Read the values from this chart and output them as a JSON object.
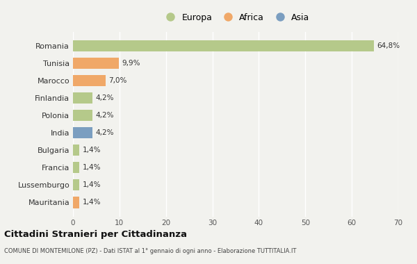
{
  "categories": [
    "Romania",
    "Tunisia",
    "Marocco",
    "Finlandia",
    "Polonia",
    "India",
    "Bulgaria",
    "Francia",
    "Lussemburgo",
    "Mauritania"
  ],
  "values": [
    64.8,
    9.9,
    7.0,
    4.2,
    4.2,
    4.2,
    1.4,
    1.4,
    1.4,
    1.4
  ],
  "labels": [
    "64,8%",
    "9,9%",
    "7,0%",
    "4,2%",
    "4,2%",
    "4,2%",
    "1,4%",
    "1,4%",
    "1,4%",
    "1,4%"
  ],
  "colors": [
    "#b5c98a",
    "#f0a868",
    "#f0a868",
    "#b5c98a",
    "#b5c98a",
    "#7b9ec0",
    "#b5c98a",
    "#b5c98a",
    "#b5c98a",
    "#f0a868"
  ],
  "legend_labels": [
    "Europa",
    "Africa",
    "Asia"
  ],
  "legend_colors": [
    "#b5c98a",
    "#f0a868",
    "#7b9ec0"
  ],
  "title": "Cittadini Stranieri per Cittadinanza",
  "subtitle": "COMUNE DI MONTEMILONE (PZ) - Dati ISTAT al 1° gennaio di ogni anno - Elaborazione TUTTITALIA.IT",
  "xlim": [
    0,
    70
  ],
  "xticks": [
    0,
    10,
    20,
    30,
    40,
    50,
    60,
    70
  ],
  "background_color": "#f2f2ee",
  "grid_color": "#ffffff",
  "bar_height": 0.65
}
